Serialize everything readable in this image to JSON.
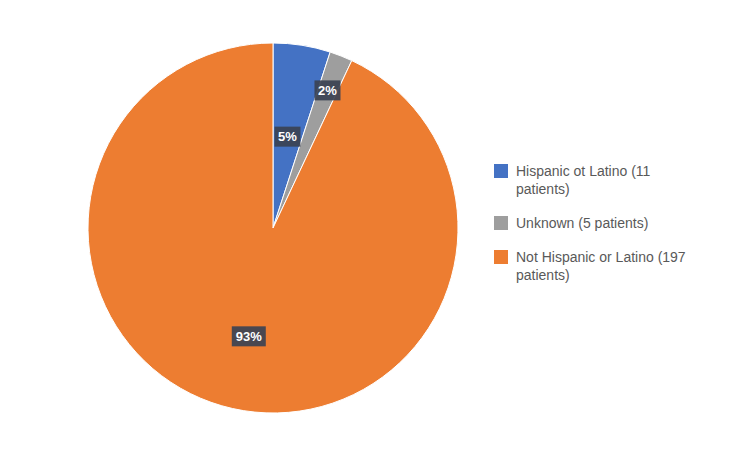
{
  "chart_data": {
    "type": "pie",
    "categories": [
      "Hispanic ot Latino (11\npatients)",
      "Unknown (5 patients)",
      "Not Hispanic or Latino (197\npatients)"
    ],
    "values": [
      5,
      2,
      93
    ],
    "value_labels": [
      "5%",
      "2%",
      "93%"
    ],
    "colors": [
      "#4472C4",
      "#9E9E9E",
      "#ED7D31"
    ],
    "data_labels": true,
    "legend": "right"
  }
}
